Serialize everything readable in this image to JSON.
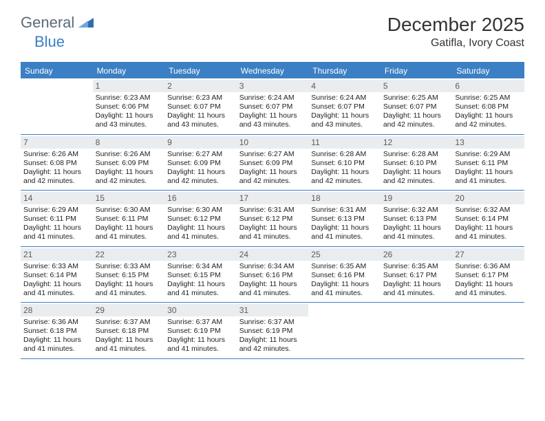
{
  "brand": {
    "part1": "General",
    "part2": "Blue"
  },
  "title": "December 2025",
  "location": "Gatifla, Ivory Coast",
  "colors": {
    "accent": "#3b7fc4",
    "daynum_bg": "#e9edef",
    "text": "#222222",
    "logo_gray": "#5a6a78"
  },
  "days_of_week": [
    "Sunday",
    "Monday",
    "Tuesday",
    "Wednesday",
    "Thursday",
    "Friday",
    "Saturday"
  ],
  "weeks": [
    [
      {
        "n": "",
        "sunrise": "",
        "sunset": "",
        "daylight": ""
      },
      {
        "n": "1",
        "sunrise": "Sunrise: 6:23 AM",
        "sunset": "Sunset: 6:06 PM",
        "daylight": "Daylight: 11 hours and 43 minutes."
      },
      {
        "n": "2",
        "sunrise": "Sunrise: 6:23 AM",
        "sunset": "Sunset: 6:07 PM",
        "daylight": "Daylight: 11 hours and 43 minutes."
      },
      {
        "n": "3",
        "sunrise": "Sunrise: 6:24 AM",
        "sunset": "Sunset: 6:07 PM",
        "daylight": "Daylight: 11 hours and 43 minutes."
      },
      {
        "n": "4",
        "sunrise": "Sunrise: 6:24 AM",
        "sunset": "Sunset: 6:07 PM",
        "daylight": "Daylight: 11 hours and 43 minutes."
      },
      {
        "n": "5",
        "sunrise": "Sunrise: 6:25 AM",
        "sunset": "Sunset: 6:07 PM",
        "daylight": "Daylight: 11 hours and 42 minutes."
      },
      {
        "n": "6",
        "sunrise": "Sunrise: 6:25 AM",
        "sunset": "Sunset: 6:08 PM",
        "daylight": "Daylight: 11 hours and 42 minutes."
      }
    ],
    [
      {
        "n": "7",
        "sunrise": "Sunrise: 6:26 AM",
        "sunset": "Sunset: 6:08 PM",
        "daylight": "Daylight: 11 hours and 42 minutes."
      },
      {
        "n": "8",
        "sunrise": "Sunrise: 6:26 AM",
        "sunset": "Sunset: 6:09 PM",
        "daylight": "Daylight: 11 hours and 42 minutes."
      },
      {
        "n": "9",
        "sunrise": "Sunrise: 6:27 AM",
        "sunset": "Sunset: 6:09 PM",
        "daylight": "Daylight: 11 hours and 42 minutes."
      },
      {
        "n": "10",
        "sunrise": "Sunrise: 6:27 AM",
        "sunset": "Sunset: 6:09 PM",
        "daylight": "Daylight: 11 hours and 42 minutes."
      },
      {
        "n": "11",
        "sunrise": "Sunrise: 6:28 AM",
        "sunset": "Sunset: 6:10 PM",
        "daylight": "Daylight: 11 hours and 42 minutes."
      },
      {
        "n": "12",
        "sunrise": "Sunrise: 6:28 AM",
        "sunset": "Sunset: 6:10 PM",
        "daylight": "Daylight: 11 hours and 42 minutes."
      },
      {
        "n": "13",
        "sunrise": "Sunrise: 6:29 AM",
        "sunset": "Sunset: 6:11 PM",
        "daylight": "Daylight: 11 hours and 41 minutes."
      }
    ],
    [
      {
        "n": "14",
        "sunrise": "Sunrise: 6:29 AM",
        "sunset": "Sunset: 6:11 PM",
        "daylight": "Daylight: 11 hours and 41 minutes."
      },
      {
        "n": "15",
        "sunrise": "Sunrise: 6:30 AM",
        "sunset": "Sunset: 6:11 PM",
        "daylight": "Daylight: 11 hours and 41 minutes."
      },
      {
        "n": "16",
        "sunrise": "Sunrise: 6:30 AM",
        "sunset": "Sunset: 6:12 PM",
        "daylight": "Daylight: 11 hours and 41 minutes."
      },
      {
        "n": "17",
        "sunrise": "Sunrise: 6:31 AM",
        "sunset": "Sunset: 6:12 PM",
        "daylight": "Daylight: 11 hours and 41 minutes."
      },
      {
        "n": "18",
        "sunrise": "Sunrise: 6:31 AM",
        "sunset": "Sunset: 6:13 PM",
        "daylight": "Daylight: 11 hours and 41 minutes."
      },
      {
        "n": "19",
        "sunrise": "Sunrise: 6:32 AM",
        "sunset": "Sunset: 6:13 PM",
        "daylight": "Daylight: 11 hours and 41 minutes."
      },
      {
        "n": "20",
        "sunrise": "Sunrise: 6:32 AM",
        "sunset": "Sunset: 6:14 PM",
        "daylight": "Daylight: 11 hours and 41 minutes."
      }
    ],
    [
      {
        "n": "21",
        "sunrise": "Sunrise: 6:33 AM",
        "sunset": "Sunset: 6:14 PM",
        "daylight": "Daylight: 11 hours and 41 minutes."
      },
      {
        "n": "22",
        "sunrise": "Sunrise: 6:33 AM",
        "sunset": "Sunset: 6:15 PM",
        "daylight": "Daylight: 11 hours and 41 minutes."
      },
      {
        "n": "23",
        "sunrise": "Sunrise: 6:34 AM",
        "sunset": "Sunset: 6:15 PM",
        "daylight": "Daylight: 11 hours and 41 minutes."
      },
      {
        "n": "24",
        "sunrise": "Sunrise: 6:34 AM",
        "sunset": "Sunset: 6:16 PM",
        "daylight": "Daylight: 11 hours and 41 minutes."
      },
      {
        "n": "25",
        "sunrise": "Sunrise: 6:35 AM",
        "sunset": "Sunset: 6:16 PM",
        "daylight": "Daylight: 11 hours and 41 minutes."
      },
      {
        "n": "26",
        "sunrise": "Sunrise: 6:35 AM",
        "sunset": "Sunset: 6:17 PM",
        "daylight": "Daylight: 11 hours and 41 minutes."
      },
      {
        "n": "27",
        "sunrise": "Sunrise: 6:36 AM",
        "sunset": "Sunset: 6:17 PM",
        "daylight": "Daylight: 11 hours and 41 minutes."
      }
    ],
    [
      {
        "n": "28",
        "sunrise": "Sunrise: 6:36 AM",
        "sunset": "Sunset: 6:18 PM",
        "daylight": "Daylight: 11 hours and 41 minutes."
      },
      {
        "n": "29",
        "sunrise": "Sunrise: 6:37 AM",
        "sunset": "Sunset: 6:18 PM",
        "daylight": "Daylight: 11 hours and 41 minutes."
      },
      {
        "n": "30",
        "sunrise": "Sunrise: 6:37 AM",
        "sunset": "Sunset: 6:19 PM",
        "daylight": "Daylight: 11 hours and 41 minutes."
      },
      {
        "n": "31",
        "sunrise": "Sunrise: 6:37 AM",
        "sunset": "Sunset: 6:19 PM",
        "daylight": "Daylight: 11 hours and 42 minutes."
      },
      {
        "n": "",
        "sunrise": "",
        "sunset": "",
        "daylight": ""
      },
      {
        "n": "",
        "sunrise": "",
        "sunset": "",
        "daylight": ""
      },
      {
        "n": "",
        "sunrise": "",
        "sunset": "",
        "daylight": ""
      }
    ]
  ]
}
